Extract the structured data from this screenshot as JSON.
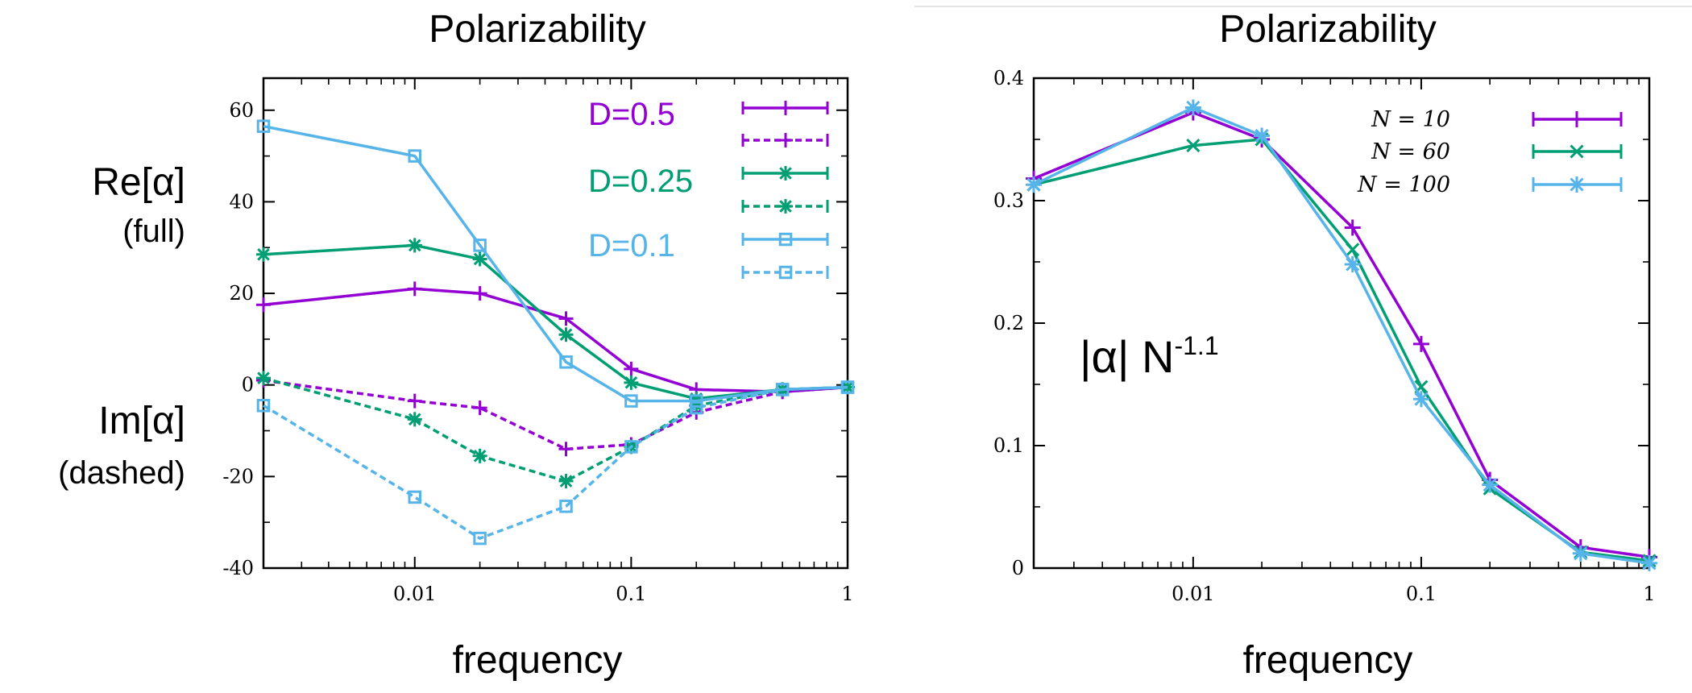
{
  "colors": {
    "purple": "#9400D3",
    "green": "#009E73",
    "blue": "#56B4E9",
    "axis": "#000000"
  },
  "chart_data": [
    {
      "type": "line",
      "title": "Polarizability",
      "xlabel": "frequency",
      "ylabel_re": "Re[α]",
      "ylabel_re_sub": "(full)",
      "ylabel_im": "Im[α]",
      "ylabel_im_sub": "(dashed)",
      "x_scale": "log",
      "xlim": [
        0.002,
        1
      ],
      "ylim": [
        -40,
        67
      ],
      "xticks": [
        0.01,
        0.1,
        1
      ],
      "xtick_labels": [
        "0.01",
        "0.1",
        "1"
      ],
      "yticks": [
        -40,
        -20,
        0,
        20,
        40,
        60
      ],
      "ytick_labels": [
        "-40",
        "-20",
        "0",
        "20",
        "40",
        "60"
      ],
      "legend_position": "top-right",
      "legend": [
        {
          "label": "D=0.5",
          "color": "purple"
        },
        {
          "label": "D=0.25",
          "color": "green"
        },
        {
          "label": "D=0.1",
          "color": "blue"
        }
      ],
      "x": [
        0.002,
        0.01,
        0.02,
        0.05,
        0.1,
        0.2,
        0.5,
        1
      ],
      "series": [
        {
          "color": "purple",
          "marker": "plus",
          "dashed": false,
          "values": [
            17.5,
            21,
            20,
            14.5,
            3.5,
            -1,
            -1.5,
            -0.5
          ]
        },
        {
          "color": "purple",
          "marker": "plus",
          "dashed": true,
          "values": [
            1,
            -3.5,
            -5,
            -14,
            -13,
            -6,
            -1.5,
            -0.5
          ]
        },
        {
          "color": "green",
          "marker": "star",
          "dashed": false,
          "values": [
            28.5,
            30.5,
            27.5,
            11,
            0.5,
            -3,
            -1,
            -0.5
          ]
        },
        {
          "color": "green",
          "marker": "star",
          "dashed": true,
          "values": [
            1.5,
            -7.5,
            -15.5,
            -21,
            -13.5,
            -4.5,
            -1,
            -0.5
          ]
        },
        {
          "color": "blue",
          "marker": "square",
          "dashed": false,
          "values": [
            56.5,
            50,
            30.5,
            5,
            -3.5,
            -3.5,
            -1,
            -0.5
          ]
        },
        {
          "color": "blue",
          "marker": "square",
          "dashed": true,
          "values": [
            -4.5,
            -24.5,
            -33.5,
            -26.5,
            -13.5,
            -5,
            -1,
            -0.5
          ]
        }
      ]
    },
    {
      "type": "line",
      "title": "Polarizability",
      "xlabel": "frequency",
      "annotation": "|α| N",
      "annotation_sup": "-1.1",
      "x_scale": "log",
      "xlim": [
        0.002,
        1
      ],
      "ylim": [
        0,
        0.4
      ],
      "xticks": [
        0.01,
        0.1,
        1
      ],
      "xtick_labels": [
        "0.01",
        "0.1",
        "1"
      ],
      "yticks": [
        0,
        0.1,
        0.2,
        0.3,
        0.4
      ],
      "ytick_labels": [
        "0",
        "0.1",
        "0.2",
        "0.3",
        "0.4"
      ],
      "legend_position": "top-right",
      "x": [
        0.002,
        0.01,
        0.02,
        0.05,
        0.1,
        0.2,
        0.5,
        1
      ],
      "series": [
        {
          "name": "N = 10",
          "color": "purple",
          "marker": "plus",
          "values": [
            0.318,
            0.372,
            0.35,
            0.278,
            0.183,
            0.072,
            0.017,
            0.009
          ]
        },
        {
          "name": "N = 60",
          "color": "green",
          "marker": "x",
          "values": [
            0.313,
            0.345,
            0.35,
            0.26,
            0.148,
            0.065,
            0.013,
            0.006
          ]
        },
        {
          "name": "N = 100",
          "color": "blue",
          "marker": "star",
          "values": [
            0.313,
            0.376,
            0.353,
            0.248,
            0.138,
            0.068,
            0.012,
            0.004
          ]
        }
      ]
    }
  ]
}
